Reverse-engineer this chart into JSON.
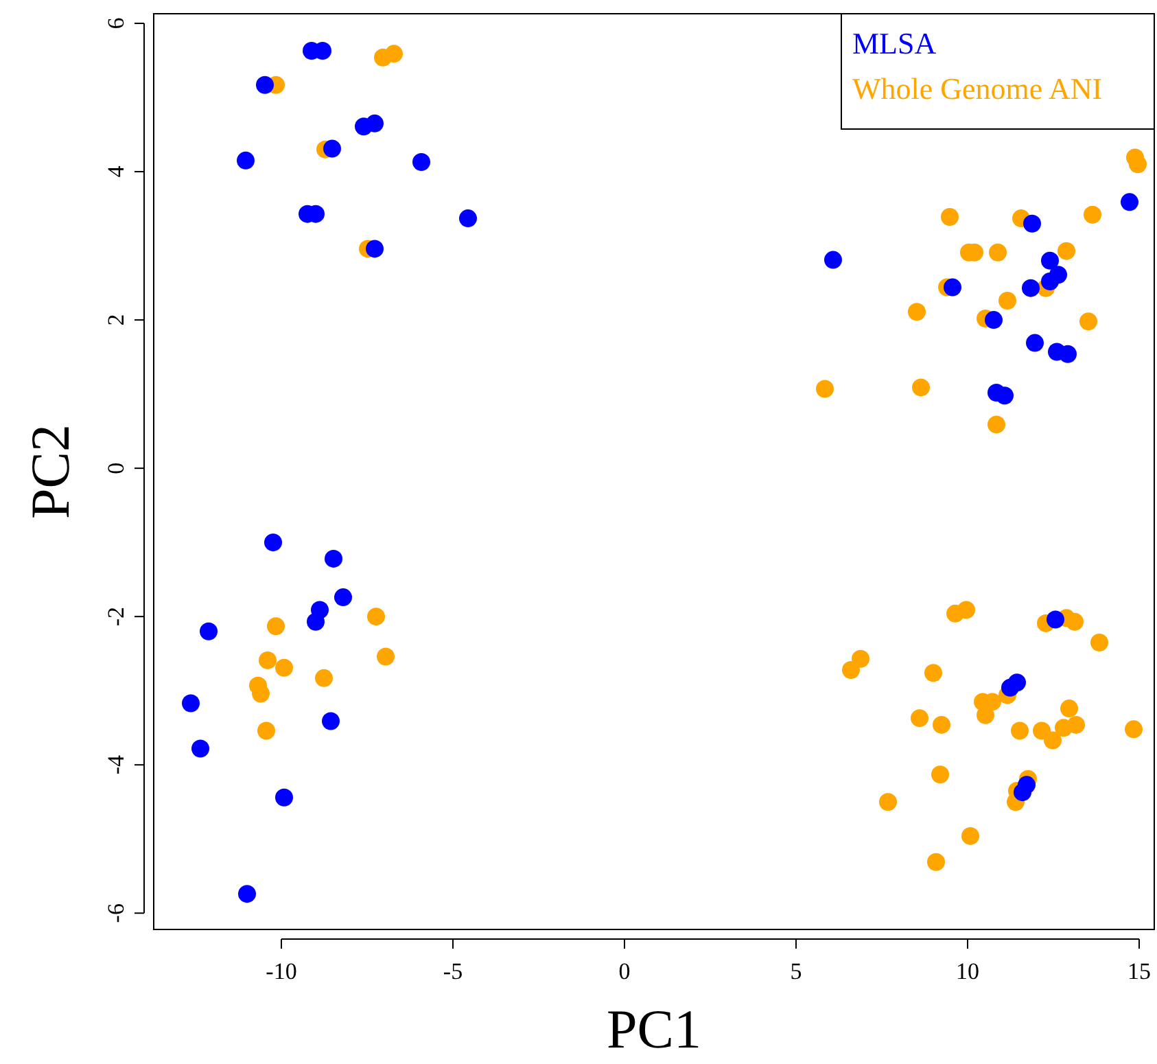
{
  "chart_data": {
    "type": "scatter",
    "xlabel": "PC1",
    "ylabel": "PC2",
    "xlim": [
      -13.72,
      15.44
    ],
    "ylim": [
      -6.22,
      6.13
    ],
    "xticks": [
      -10,
      -5,
      0,
      5,
      10,
      15
    ],
    "yticks": [
      -6,
      -4,
      -2,
      0,
      2,
      4,
      6
    ],
    "grid": false,
    "legend": "top right",
    "marker": "circle",
    "series": [
      {
        "name": "MLSA",
        "color": "#0000ff",
        "x": [
          -10.48,
          -9.12,
          -8.8,
          -11.04,
          -8.52,
          -7.6,
          -7.28,
          -5.92,
          -9.24,
          -9.0,
          -4.56,
          -7.28,
          6.08,
          9.56,
          10.76,
          11.88,
          14.72,
          12.4,
          12.64,
          12.4,
          11.84,
          11.96,
          12.6,
          12.92,
          10.84,
          11.08,
          -10.24,
          -8.48,
          -8.2,
          -8.88,
          -9.0,
          -12.12,
          -12.64,
          -8.56,
          -12.36,
          -9.92,
          -11.0,
          12.56,
          11.44,
          11.24,
          11.72,
          11.6
        ],
        "values": [
          5.17,
          5.63,
          5.63,
          4.15,
          4.31,
          4.61,
          4.65,
          4.13,
          3.43,
          3.43,
          3.37,
          2.96,
          2.81,
          2.44,
          2.0,
          3.3,
          3.59,
          2.8,
          2.61,
          2.52,
          2.43,
          1.69,
          1.57,
          1.54,
          1.02,
          0.98,
          -1.0,
          -1.22,
          -1.74,
          -1.91,
          -2.07,
          -2.2,
          -3.17,
          -3.41,
          -3.78,
          -4.44,
          -5.74,
          -2.04,
          -2.89,
          -2.96,
          -4.27,
          -4.37
        ]
      },
      {
        "name": "Whole Genome ANI",
        "color": "#ffa500",
        "x": [
          -10.16,
          -7.04,
          -6.72,
          -8.72,
          -7.48,
          9.48,
          11.56,
          13.64,
          10.04,
          10.2,
          10.88,
          12.88,
          9.4,
          11.16,
          12.28,
          8.52,
          10.52,
          13.52,
          5.84,
          8.64,
          10.84,
          14.88,
          14.96,
          -10.16,
          -7.24,
          -10.4,
          -9.92,
          -6.96,
          -8.76,
          -10.68,
          -10.6,
          -10.44,
          9.64,
          9.96,
          12.28,
          12.88,
          13.12,
          13.84,
          6.88,
          6.6,
          9.0,
          10.44,
          10.72,
          11.16,
          10.52,
          8.6,
          9.24,
          11.52,
          12.16,
          12.48,
          12.8,
          13.16,
          12.96,
          14.84,
          9.2,
          11.76,
          11.44,
          11.4,
          7.68,
          10.08,
          9.08
        ],
        "values": [
          5.17,
          5.54,
          5.59,
          4.3,
          2.96,
          3.39,
          3.37,
          3.42,
          2.91,
          2.91,
          2.91,
          2.93,
          2.44,
          2.26,
          2.43,
          2.11,
          2.02,
          1.98,
          1.07,
          1.09,
          0.59,
          4.19,
          4.1,
          -2.13,
          -2.0,
          -2.59,
          -2.69,
          -2.54,
          -2.83,
          -2.93,
          -3.04,
          -3.54,
          -1.96,
          -1.91,
          -2.09,
          -2.02,
          -2.07,
          -2.35,
          -2.57,
          -2.72,
          -2.76,
          -3.15,
          -3.15,
          -3.06,
          -3.33,
          -3.37,
          -3.46,
          -3.54,
          -3.54,
          -3.67,
          -3.5,
          -3.46,
          -3.24,
          -3.52,
          -4.13,
          -4.19,
          -4.35,
          -4.5,
          -4.5,
          -4.96,
          -5.31
        ]
      }
    ]
  }
}
